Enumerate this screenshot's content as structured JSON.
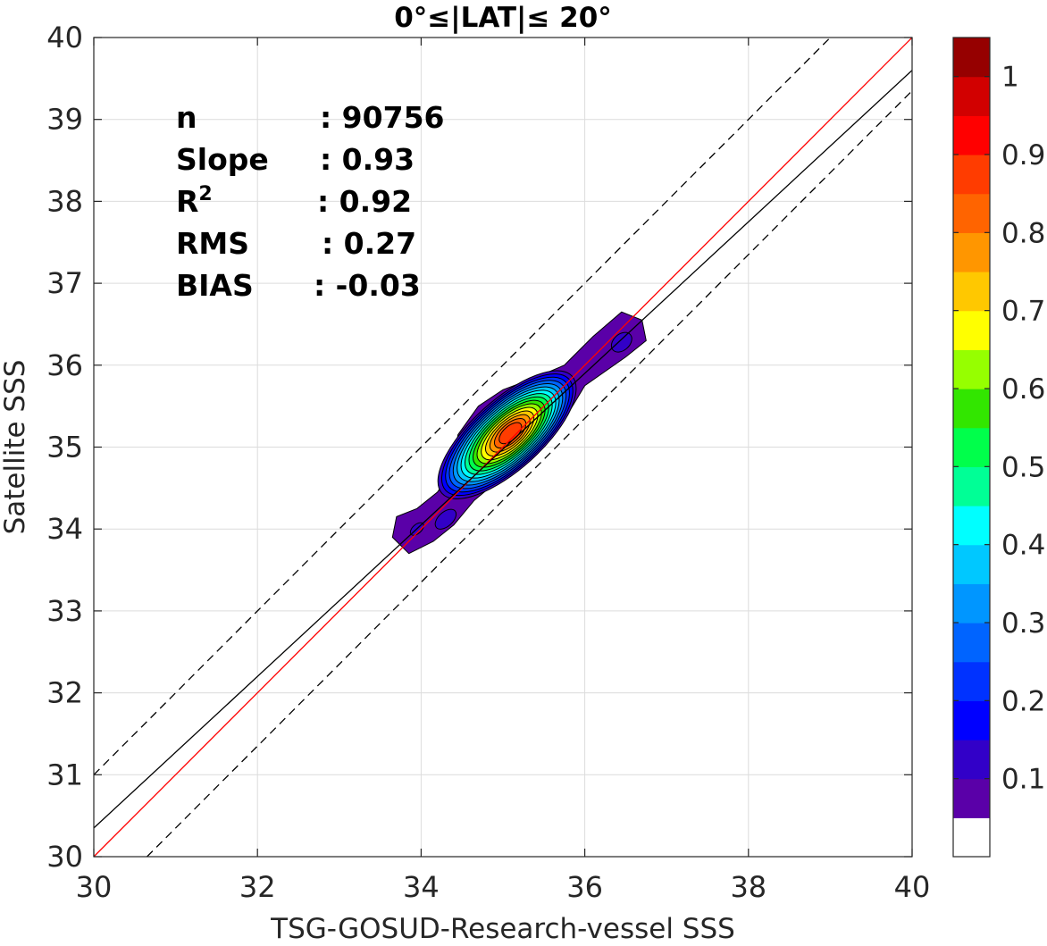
{
  "chart_data": {
    "type": "contour-scatter",
    "title": "0°≤|LAT|≤ 20°",
    "xlabel": "TSG-GOSUD-Research-vessel SSS",
    "ylabel": "Satellite SSS",
    "xlim": [
      30,
      40
    ],
    "ylim": [
      30,
      40
    ],
    "xticks": [
      30,
      32,
      34,
      36,
      38,
      40
    ],
    "yticks": [
      30,
      31,
      32,
      33,
      34,
      35,
      36,
      37,
      38,
      39,
      40
    ],
    "grid": true,
    "stats": [
      {
        "label": "n",
        "value": ": 90756"
      },
      {
        "label": "Slope",
        "value": ": 0.93"
      },
      {
        "label": "R",
        "sup": "2",
        "value": ": 0.92"
      },
      {
        "label": "RMS",
        "value": ": 0.27"
      },
      {
        "label": "BIAS",
        "value": ": -0.03"
      }
    ],
    "lines": [
      {
        "kind": "one-to-one",
        "color": "#ff0000",
        "slope": 1.0,
        "intercept": 0.0
      },
      {
        "kind": "regression",
        "color": "#000000",
        "slope": 0.925,
        "intercept": 2.6
      },
      {
        "kind": "upper-bound",
        "color": "#000000",
        "dashed": true,
        "slope": 1.0,
        "intercept": 1.0
      },
      {
        "kind": "lower-bound",
        "color": "#000000",
        "dashed": true,
        "slope": 1.0,
        "intercept": -0.65
      }
    ],
    "density_peak": {
      "x": 35.05,
      "y": 35.15
    },
    "colorbar": {
      "ticks": [
        "0.1",
        "0.2",
        "0.3",
        "0.4",
        "0.5",
        "0.6",
        "0.7",
        "0.8",
        "0.9",
        "1"
      ],
      "colors": [
        "#ffffff",
        "#5a00a8",
        "#3200c8",
        "#0000ff",
        "#0032ff",
        "#0064ff",
        "#0096ff",
        "#00c8ff",
        "#00ffff",
        "#00ff96",
        "#00ff4b",
        "#32e600",
        "#96ff00",
        "#ffff00",
        "#ffc800",
        "#ff9600",
        "#ff6400",
        "#ff3c00",
        "#ff0000",
        "#d20000",
        "#960000"
      ]
    }
  }
}
